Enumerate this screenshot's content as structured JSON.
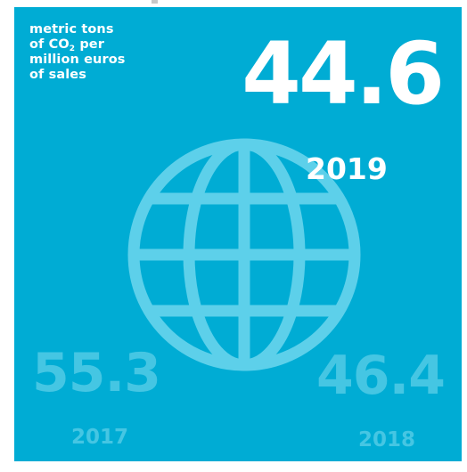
{
  "unit_label": {
    "line1": "metric tons",
    "line2_prefix": "of CO",
    "line2_sub": "2",
    "line2_suffix": " per",
    "line3": "million euros",
    "line4": "of sales"
  },
  "current": {
    "value": "44.6",
    "year": "2019"
  },
  "previous": [
    {
      "value": "55.3",
      "year": "2017"
    },
    {
      "value": "46.4",
      "year": "2018"
    }
  ],
  "icon": "globe-icon",
  "colors": {
    "background": "#00acd4",
    "primary_text": "#ffffff",
    "faded_text": "#45c6e3",
    "globe_stroke": "#5dd0ea"
  }
}
